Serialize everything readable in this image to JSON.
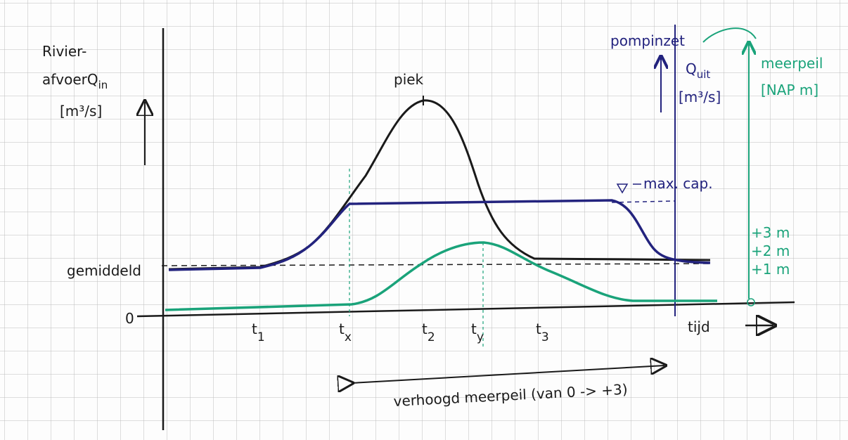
{
  "axis_left": {
    "lines": [
      "Rivier-",
      "afvoerQ",
      "[m³/s]"
    ],
    "sub": "in"
  },
  "peak_label": "piek",
  "average_label": "gemiddeld",
  "zero_label": "0",
  "time_labels": [
    {
      "main": "t",
      "sub": "1"
    },
    {
      "main": "t",
      "sub": "x"
    },
    {
      "main": "t",
      "sub": "2"
    },
    {
      "main": "t",
      "sub": "y"
    },
    {
      "main": "t",
      "sub": "3"
    }
  ],
  "time_axis_label": "tijd",
  "axis_right_pump": {
    "title": "pompinzet",
    "q": "Q",
    "q_sub": "uit",
    "unit": "[m³/s]"
  },
  "max_cap_label": "max. cap.",
  "axis_right_lake": {
    "title": "meerpeil",
    "unit": "[NAP m]",
    "ticks": [
      "+3 m",
      "+2 m",
      "+1 m"
    ]
  },
  "raised_level_label": "verhoogd meerpeil (van 0 -> +3)"
}
